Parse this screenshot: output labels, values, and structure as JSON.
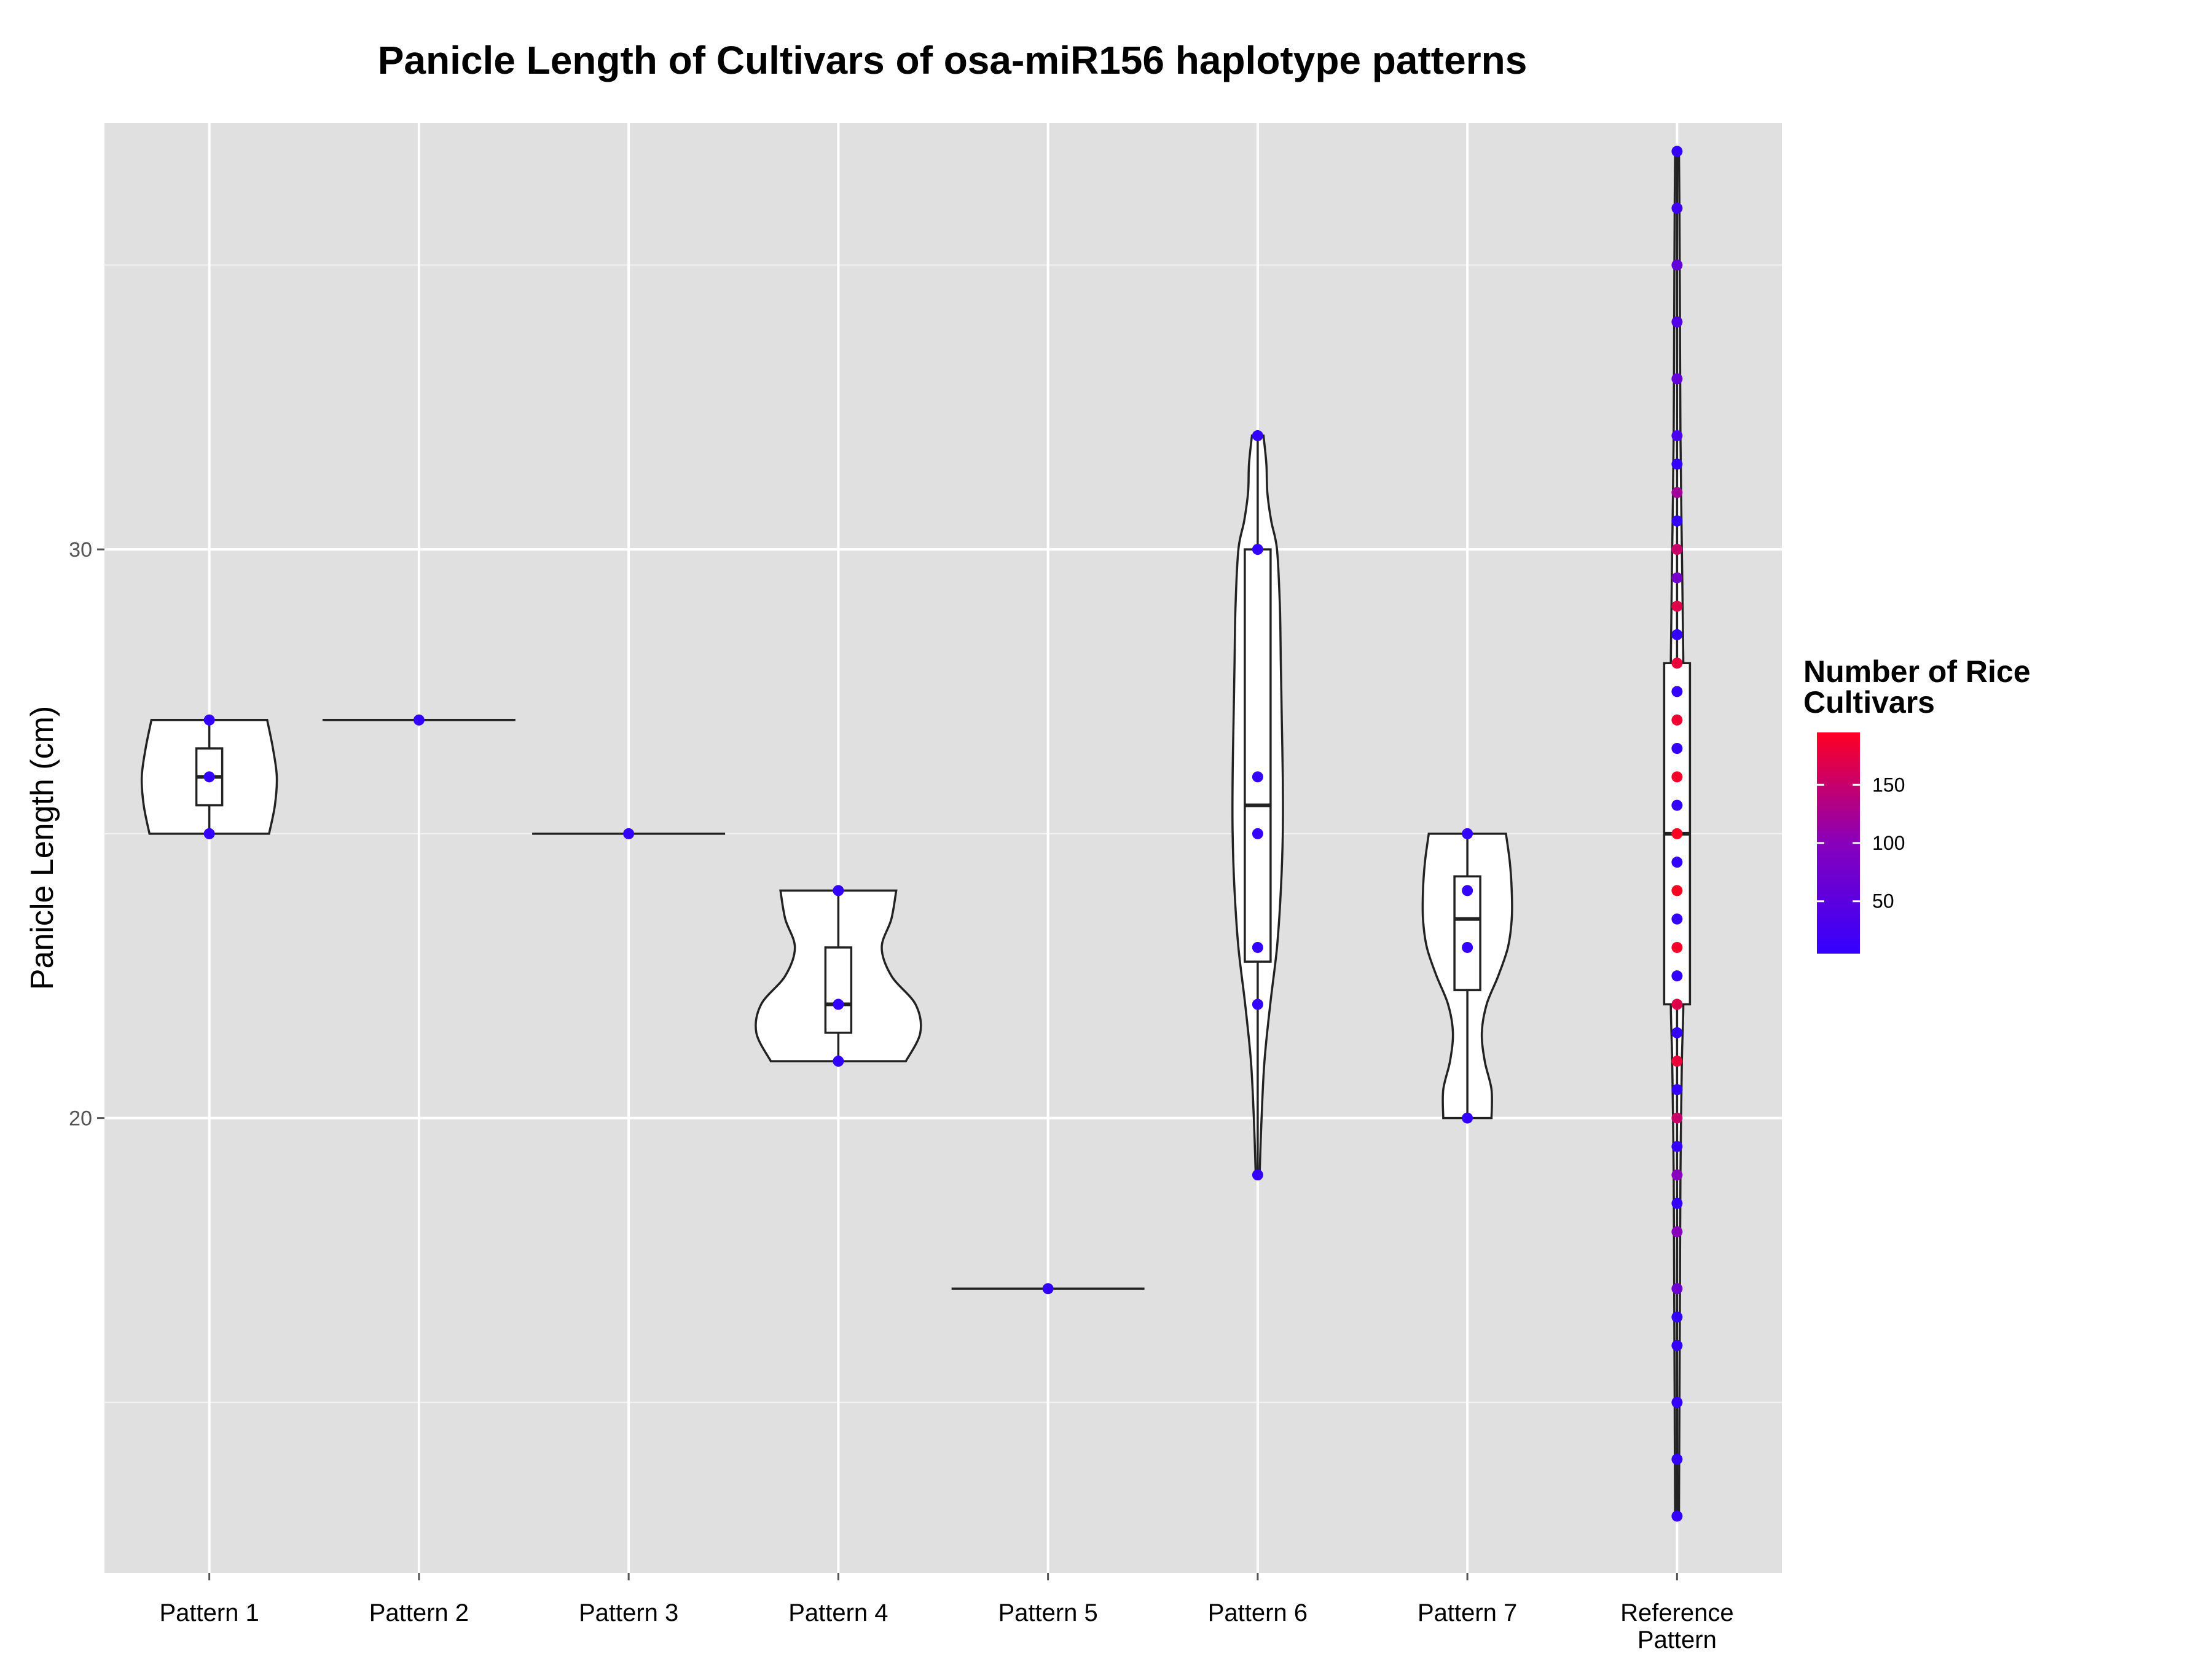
{
  "chart_data": {
    "type": "violin",
    "title": "Panicle Length of Cultivars of osa-miR156 haplotype patterns",
    "ylabel": "Panicle Length (cm)",
    "xlabel": "",
    "ylim": [
      12,
      37.5
    ],
    "yticks": [
      20,
      30
    ],
    "grid": true,
    "categories": [
      {
        "label": "Pattern 1",
        "lines": [
          "Pattern 1"
        ]
      },
      {
        "label": "Pattern 2",
        "lines": [
          "Pattern 2"
        ]
      },
      {
        "label": "Pattern 3",
        "lines": [
          "Pattern 3"
        ]
      },
      {
        "label": "Pattern 4",
        "lines": [
          "Pattern 4"
        ]
      },
      {
        "label": "Pattern 5",
        "lines": [
          "Pattern 5"
        ]
      },
      {
        "label": "Pattern 6",
        "lines": [
          "Pattern 6"
        ]
      },
      {
        "label": "Pattern 7",
        "lines": [
          "Pattern 7"
        ]
      },
      {
        "label": "Reference Pattern",
        "lines": [
          "Reference",
          "Pattern"
        ]
      }
    ],
    "groups": [
      {
        "min": 25,
        "q1": 25.5,
        "median": 26,
        "q3": 26.5,
        "max": 27,
        "violin": [
          [
            25,
            0.62
          ],
          [
            25.5,
            0.68
          ],
          [
            26,
            0.7
          ],
          [
            26.5,
            0.66
          ],
          [
            27,
            0.6
          ]
        ],
        "points": [
          {
            "y": 25,
            "n": 5
          },
          {
            "y": 26,
            "n": 5
          },
          {
            "y": 27,
            "n": 5
          }
        ]
      },
      {
        "min": 27,
        "q1": 27,
        "median": 27,
        "q3": 27,
        "max": 27,
        "violin": [
          [
            27,
            1.0
          ]
        ],
        "points": [
          {
            "y": 27,
            "n": 5
          }
        ]
      },
      {
        "min": 25,
        "q1": 25,
        "median": 25,
        "q3": 25,
        "max": 25,
        "violin": [
          [
            25,
            1.0
          ]
        ],
        "points": [
          {
            "y": 25,
            "n": 5
          }
        ]
      },
      {
        "min": 21,
        "q1": 21.5,
        "median": 22,
        "q3": 23,
        "max": 24,
        "violin": [
          [
            21,
            0.7
          ],
          [
            21.5,
            0.85
          ],
          [
            22,
            0.8
          ],
          [
            22.5,
            0.55
          ],
          [
            23,
            0.45
          ],
          [
            23.5,
            0.55
          ],
          [
            24,
            0.6
          ]
        ],
        "points": [
          {
            "y": 21,
            "n": 5
          },
          {
            "y": 22,
            "n": 5
          },
          {
            "y": 24,
            "n": 5
          }
        ]
      },
      {
        "min": 17,
        "q1": 17,
        "median": 17,
        "q3": 17,
        "max": 17,
        "violin": [
          [
            17,
            1.0
          ]
        ],
        "points": [
          {
            "y": 17,
            "n": 5
          }
        ]
      },
      {
        "min": 19,
        "q1": 22.75,
        "median": 25.5,
        "q3": 30,
        "max": 32,
        "violin": [
          [
            19,
            0.02
          ],
          [
            20,
            0.04
          ],
          [
            21,
            0.07
          ],
          [
            22,
            0.13
          ],
          [
            23,
            0.2
          ],
          [
            24,
            0.24
          ],
          [
            25,
            0.26
          ],
          [
            26,
            0.26
          ],
          [
            27,
            0.25
          ],
          [
            28,
            0.24
          ],
          [
            29,
            0.23
          ],
          [
            30,
            0.2
          ],
          [
            30.5,
            0.14
          ],
          [
            31,
            0.1
          ],
          [
            31.5,
            0.09
          ],
          [
            32,
            0.06
          ]
        ],
        "points": [
          {
            "y": 19,
            "n": 5
          },
          {
            "y": 22,
            "n": 5
          },
          {
            "y": 23,
            "n": 5
          },
          {
            "y": 25,
            "n": 5
          },
          {
            "y": 26,
            "n": 5
          },
          {
            "y": 30,
            "n": 5
          },
          {
            "y": 32,
            "n": 5
          }
        ]
      },
      {
        "min": 20,
        "q1": 22.25,
        "median": 23.5,
        "q3": 24.25,
        "max": 25,
        "violin": [
          [
            20,
            0.25
          ],
          [
            20.5,
            0.25
          ],
          [
            21,
            0.18
          ],
          [
            21.5,
            0.15
          ],
          [
            22,
            0.2
          ],
          [
            22.5,
            0.32
          ],
          [
            23,
            0.42
          ],
          [
            23.5,
            0.46
          ],
          [
            24,
            0.46
          ],
          [
            24.5,
            0.44
          ],
          [
            25,
            0.4
          ]
        ],
        "points": [
          {
            "y": 20,
            "n": 5
          },
          {
            "y": 23,
            "n": 5
          },
          {
            "y": 24,
            "n": 5
          },
          {
            "y": 25,
            "n": 5
          }
        ]
      },
      {
        "min": 13,
        "q1": 22,
        "median": 25,
        "q3": 28,
        "max": 37,
        "violin": [
          [
            13,
            0.02
          ],
          [
            15,
            0.025
          ],
          [
            17,
            0.03
          ],
          [
            19,
            0.035
          ],
          [
            21,
            0.05
          ],
          [
            22,
            0.065
          ],
          [
            24,
            0.07
          ],
          [
            26,
            0.07
          ],
          [
            28,
            0.065
          ],
          [
            30,
            0.05
          ],
          [
            32,
            0.035
          ],
          [
            34,
            0.03
          ],
          [
            36,
            0.025
          ],
          [
            37,
            0.02
          ]
        ],
        "points": [
          {
            "y": 13,
            "n": 5
          },
          {
            "y": 14,
            "n": 5
          },
          {
            "y": 15,
            "n": 5
          },
          {
            "y": 16,
            "n": 5
          },
          {
            "y": 16.5,
            "n": 5
          },
          {
            "y": 17,
            "n": 70
          },
          {
            "y": 18,
            "n": 100
          },
          {
            "y": 18.5,
            "n": 5
          },
          {
            "y": 19,
            "n": 100
          },
          {
            "y": 19.5,
            "n": 5
          },
          {
            "y": 20,
            "n": 150
          },
          {
            "y": 20.5,
            "n": 5
          },
          {
            "y": 21,
            "n": 180
          },
          {
            "y": 21.5,
            "n": 5
          },
          {
            "y": 22,
            "n": 170
          },
          {
            "y": 22.5,
            "n": 5
          },
          {
            "y": 23,
            "n": 190
          },
          {
            "y": 23.5,
            "n": 5
          },
          {
            "y": 24,
            "n": 195
          },
          {
            "y": 24.5,
            "n": 5
          },
          {
            "y": 25,
            "n": 195
          },
          {
            "y": 25.5,
            "n": 5
          },
          {
            "y": 26,
            "n": 190
          },
          {
            "y": 26.5,
            "n": 5
          },
          {
            "y": 27,
            "n": 185
          },
          {
            "y": 27.5,
            "n": 5
          },
          {
            "y": 28,
            "n": 180
          },
          {
            "y": 28.5,
            "n": 5
          },
          {
            "y": 29,
            "n": 170
          },
          {
            "y": 29.5,
            "n": 80
          },
          {
            "y": 30,
            "n": 150
          },
          {
            "y": 30.5,
            "n": 5
          },
          {
            "y": 31,
            "n": 120
          },
          {
            "y": 31.5,
            "n": 5
          },
          {
            "y": 32,
            "n": 30
          },
          {
            "y": 33,
            "n": 60
          },
          {
            "y": 34,
            "n": 40
          },
          {
            "y": 35,
            "n": 60
          },
          {
            "y": 36,
            "n": 20
          },
          {
            "y": 37,
            "n": 5
          }
        ]
      }
    ],
    "legend": {
      "title_lines": [
        "Number of Rice",
        "Cultivars"
      ],
      "placement": "right",
      "ticks": [
        50,
        100,
        150
      ],
      "tick_labels": [
        "50",
        "100",
        "150"
      ],
      "range": [
        5,
        195
      ],
      "low_color": "#3300ff",
      "mid_color": "#8800bb",
      "high_color": "#ff0022"
    }
  }
}
